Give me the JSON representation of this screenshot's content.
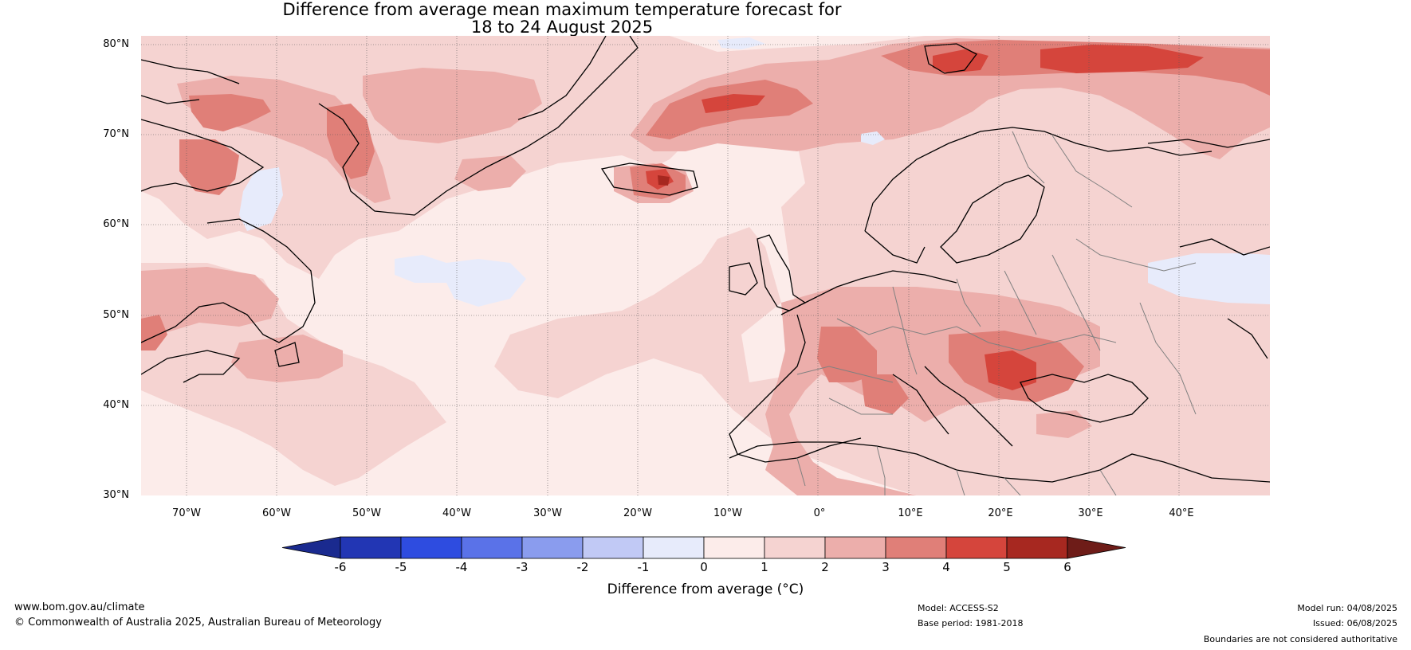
{
  "title": {
    "line1": "Difference from average mean maximum temperature forecast for",
    "line2": "18 to 24 August 2025"
  },
  "map": {
    "lat_labels": [
      "80°N",
      "70°N",
      "60°N",
      "50°N",
      "40°N",
      "30°N"
    ],
    "lon_labels": [
      "70°W",
      "60°W",
      "50°W",
      "40°W",
      "30°W",
      "20°W",
      "10°W",
      "0°",
      "10°E",
      "20°E",
      "30°E",
      "40°E"
    ],
    "lat_range": [
      30,
      81
    ],
    "lon_range": [
      -75,
      50
    ],
    "colors": {
      "background_anomaly_0_1": "#fcecea",
      "anomaly_1_2": "#f5d3d1",
      "anomaly_2_3": "#ecaeab",
      "anomaly_3_4": "#e07f78",
      "anomaly_4_5": "#d5453c",
      "anomaly_5_6": "#a72820",
      "anomaly_minus1_0": "#e7ebfb",
      "coastline": "#000000",
      "borders": "#808080"
    }
  },
  "colorbar": {
    "label": "Difference from average (°C)",
    "ticks": [
      "-6",
      "-5",
      "-4",
      "-3",
      "-2",
      "-1",
      "0",
      "1",
      "2",
      "3",
      "4",
      "5",
      "6"
    ],
    "colors": [
      "#1a2a8f",
      "#2236b4",
      "#2e4ce0",
      "#5a72e8",
      "#8a9cee",
      "#c1c9f5",
      "#e7ebfb",
      "#fcecea",
      "#f5d3d1",
      "#ecaeab",
      "#e07f78",
      "#d5453c",
      "#a72820",
      "#6e1c18"
    ]
  },
  "footer": {
    "website": "www.bom.gov.au/climate",
    "copyright": "© Commonwealth of Australia 2025, Australian Bureau of Meteorology",
    "model": "Model: ACCESS-S2",
    "base_period": "Base period: 1981-2018",
    "model_run": "Model run: 04/08/2025",
    "issued": "Issued: 06/08/2025",
    "disclaimer": "Boundaries are not considered authoritative"
  }
}
